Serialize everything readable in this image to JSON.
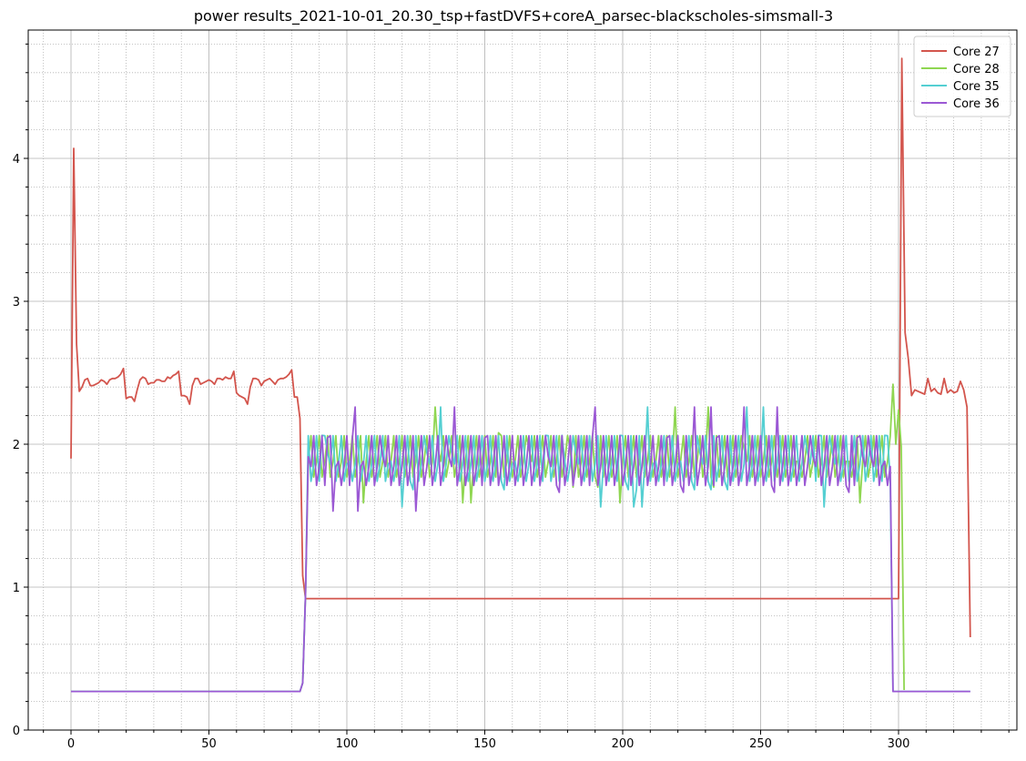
{
  "chart_data": {
    "type": "line",
    "title": "power results_2021-10-01_20.30_tsp+fastDVFS+coreA_parsec-blackscholes-simsmall-3",
    "xlabel": "",
    "ylabel": "",
    "xlim": [
      -15,
      342
    ],
    "ylim": [
      0,
      4.9
    ],
    "x_ticks": [
      0,
      50,
      100,
      150,
      200,
      250,
      300
    ],
    "y_ticks": [
      0,
      1,
      2,
      3,
      4
    ],
    "grid": {
      "major": true,
      "minor": true
    },
    "legend_position": "top-right",
    "series": [
      {
        "name": "Core 27",
        "color": "#d3554d",
        "values": [
          1.9,
          4.07,
          2.7,
          2.37,
          2.4,
          2.45,
          2.46,
          2.41,
          2.41,
          2.42,
          2.43,
          2.45,
          2.44,
          2.42,
          2.45,
          2.46,
          2.46,
          2.47,
          2.49,
          2.53,
          2.32,
          2.33,
          2.33,
          2.3,
          2.38,
          2.45,
          2.47,
          2.46,
          2.42,
          2.43,
          2.43,
          2.45,
          2.45,
          2.44,
          2.44,
          2.47,
          2.46,
          2.48,
          2.49,
          2.51,
          2.34,
          2.34,
          2.33,
          2.28,
          2.41,
          2.46,
          2.46,
          2.42,
          2.43,
          2.44,
          2.45,
          2.44,
          2.42,
          2.46,
          2.46,
          2.45,
          2.47,
          2.46,
          2.46,
          2.51,
          2.36,
          2.34,
          2.33,
          2.32,
          2.28,
          2.4,
          2.46,
          2.46,
          2.45,
          2.41,
          2.44,
          2.45,
          2.46,
          2.44,
          2.42,
          2.45,
          2.46,
          2.46,
          2.47,
          2.49,
          2.52,
          2.33,
          2.33,
          2.18,
          1.08,
          0.92
        ],
        "tail": [
          0.92,
          4.7,
          2.78,
          2.6,
          2.34,
          2.38,
          2.37,
          2.36,
          2.35,
          2.46,
          2.37,
          2.39,
          2.36,
          2.35,
          2.46,
          2.36,
          2.38,
          2.36,
          2.37,
          2.44,
          2.38,
          2.26,
          0.65
        ]
      },
      {
        "name": "Core 28",
        "color": "#8fd651"
      },
      {
        "name": "Core 35",
        "color": "#54cfd2"
      },
      {
        "name": "Core 36",
        "color": "#9b58d4"
      }
    ],
    "segments": {
      "idle_level": 0.27,
      "idle_end_x": 83,
      "busy_start_x": 86,
      "busy_end_x": 297,
      "core27_busy_level": 0.92,
      "core27_spike_x": 301,
      "core27_end_x": 326,
      "core28_tail": [
        2.42,
        2.0,
        2.24,
        1.98,
        0.28
      ],
      "core28_tail_start_x": 298
    }
  }
}
